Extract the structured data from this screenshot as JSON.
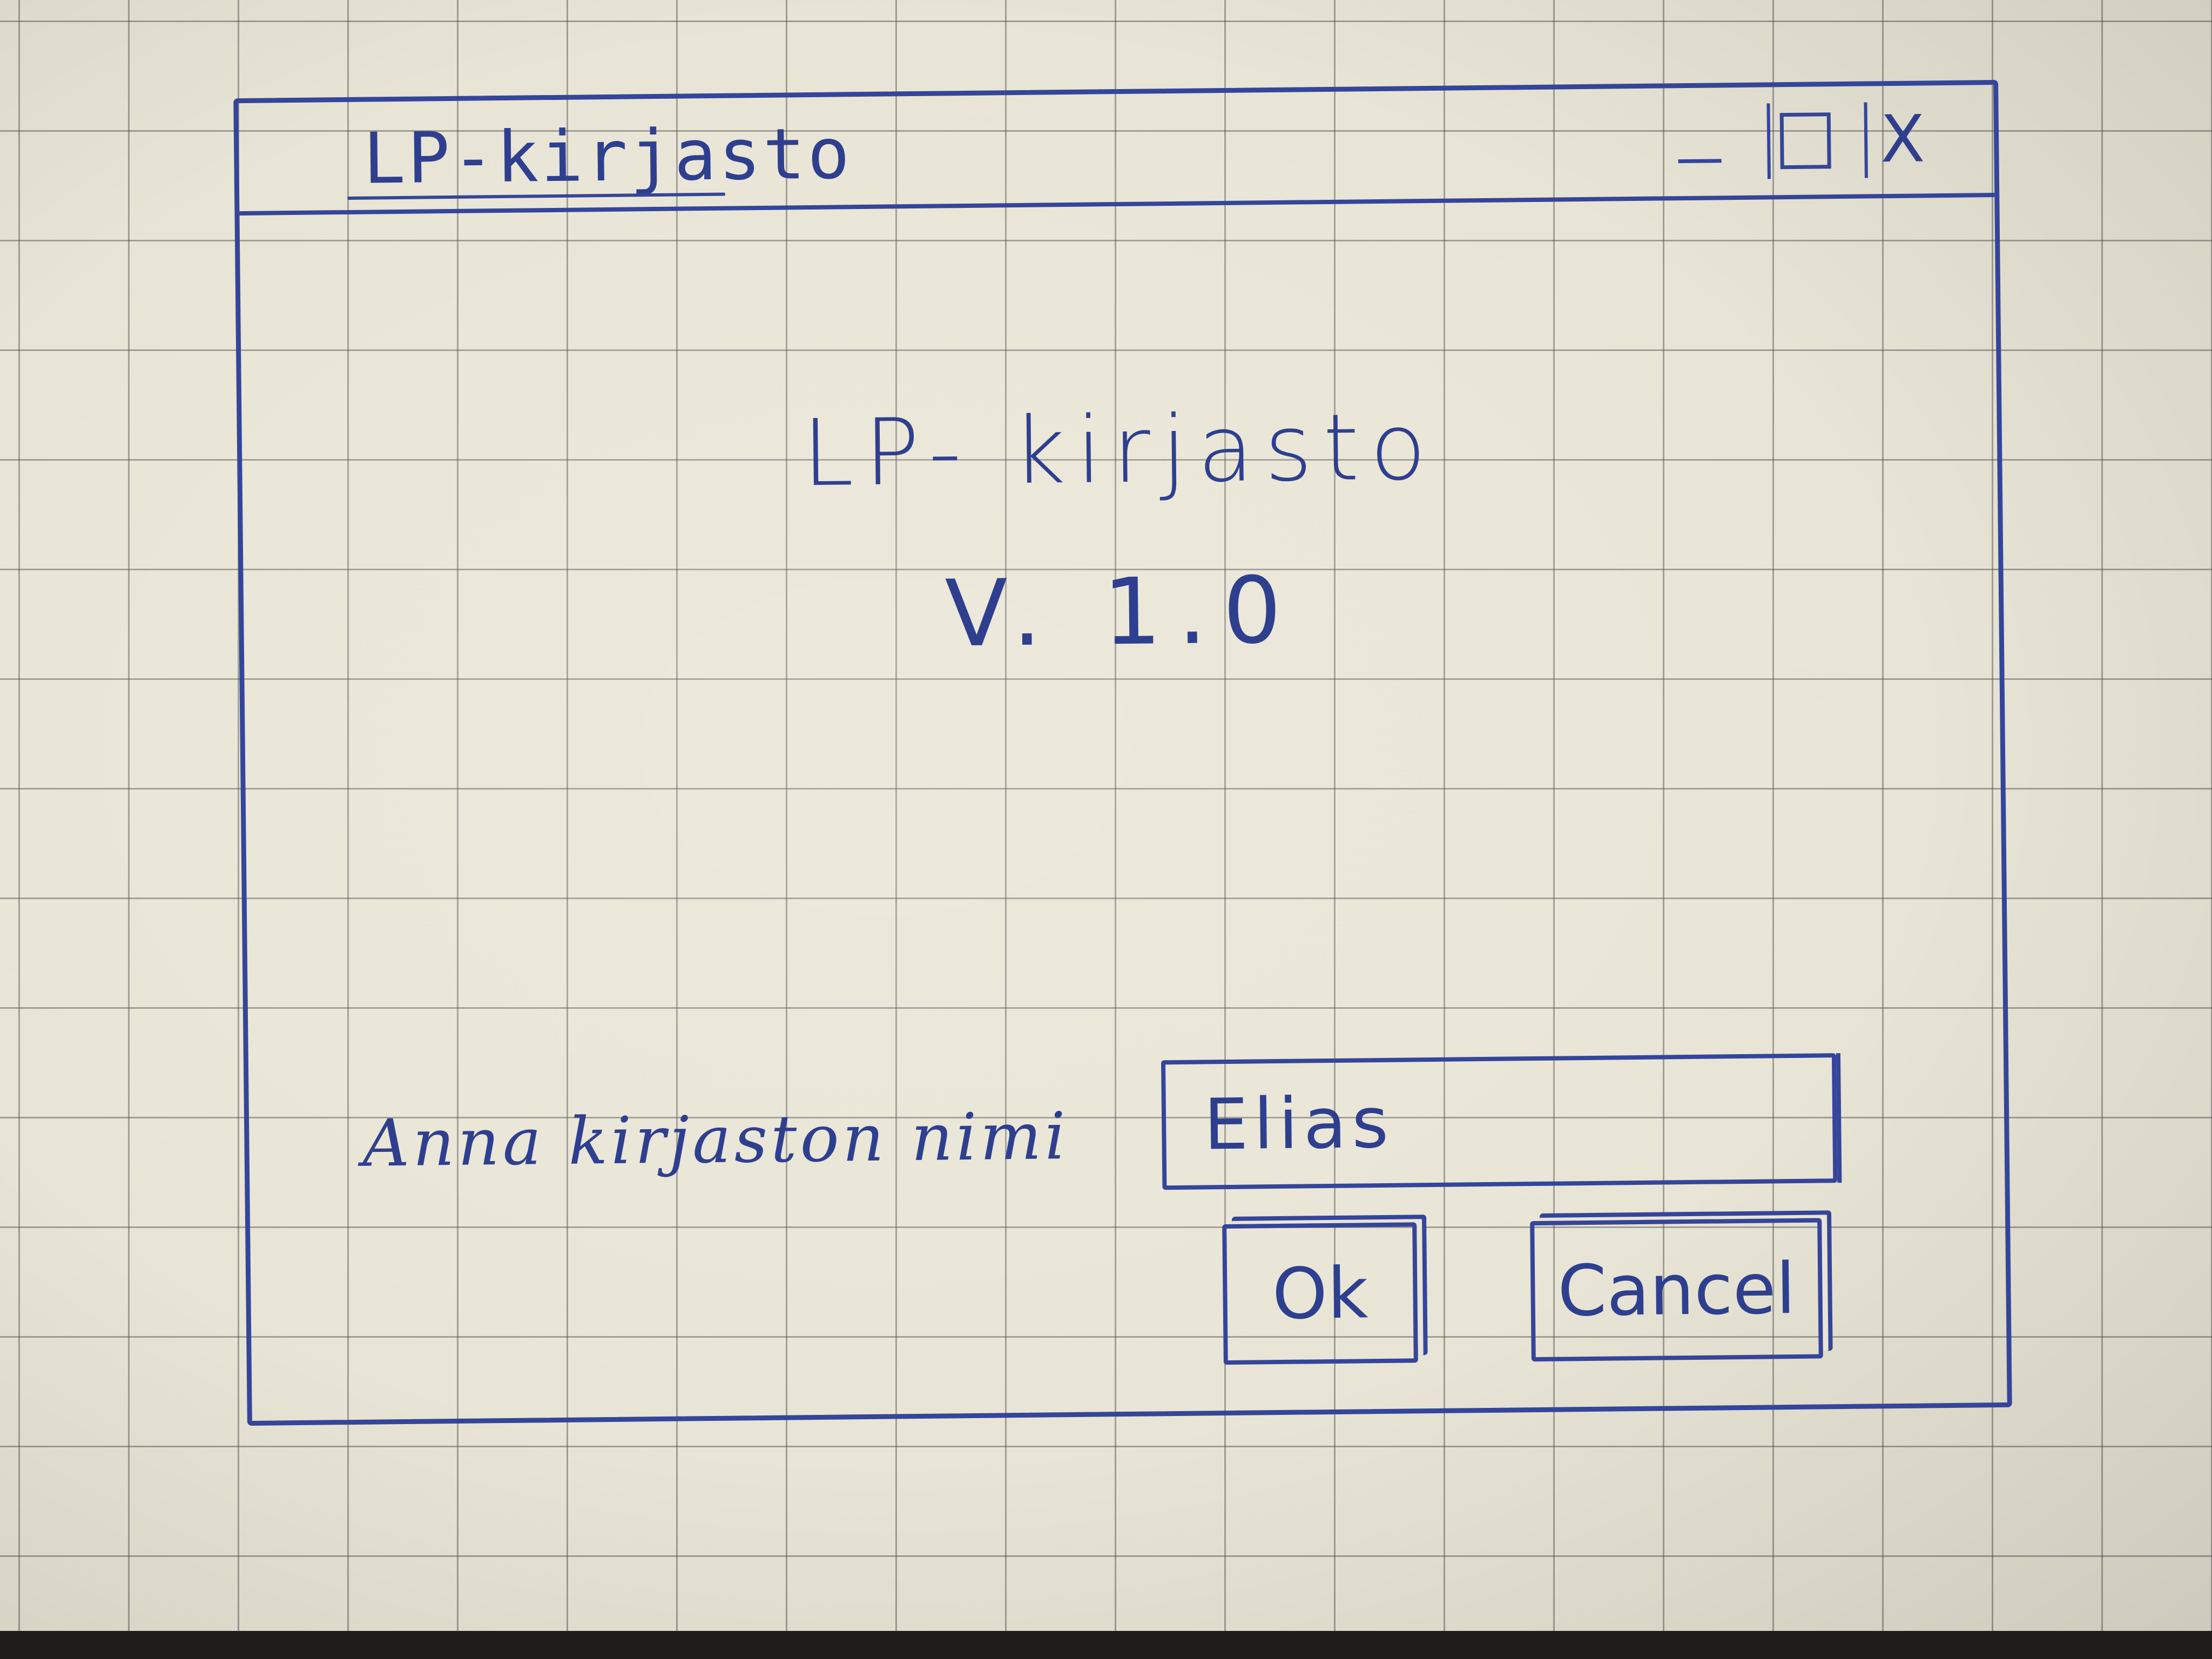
{
  "window": {
    "title": "LP-kirjasto",
    "controls": {
      "minimize": "_",
      "close": "X"
    }
  },
  "main": {
    "app_name": "LP- kirjasto",
    "version": "V. 1.0"
  },
  "form": {
    "label": "Anna kirjaston nimi",
    "name_value": "Elias"
  },
  "buttons": {
    "ok_label": "Ok",
    "cancel_label": "Cancel"
  }
}
